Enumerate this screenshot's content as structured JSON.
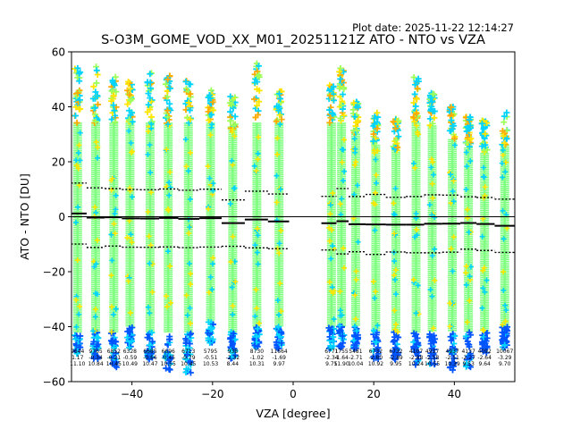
{
  "chart_data": {
    "type": "scatter",
    "title": "S-O3M_GOME_VOD_XX_M01_20251121Z ATO - NTO vs VZA",
    "plot_date": "Plot date: 2025-11-22 12:14:27",
    "xlabel": "VZA [degree]",
    "ylabel": "ATO - NTO [DU]",
    "xlim": [
      -55,
      55
    ],
    "ylim": [
      -60,
      60
    ],
    "xticks": [
      -40,
      -20,
      0,
      20,
      40
    ],
    "yticks": [
      -60,
      -40,
      -20,
      0,
      20,
      40,
      60
    ],
    "zero_line": 0,
    "bins": [
      {
        "vza": -53.5,
        "top": 55,
        "bot": -50,
        "mean": 1.17,
        "sd": 11.1,
        "n": "9644"
      },
      {
        "vza": -49.0,
        "top": 55,
        "bot": -52,
        "mean": -0.34,
        "sd": 10.84,
        "n": "9765"
      },
      {
        "vza": -44.5,
        "top": 51,
        "bot": -55,
        "mean": -0.21,
        "sd": 10.45,
        "n": "6852"
      },
      {
        "vza": -40.5,
        "top": 50,
        "bot": -48,
        "mean": -0.59,
        "sd": 10.49,
        "n": "6328"
      },
      {
        "vza": -35.5,
        "top": 53,
        "bot": -52,
        "mean": -0.66,
        "sd": 10.47,
        "n": "6685"
      },
      {
        "vza": -31.0,
        "top": 53,
        "bot": -56,
        "mean": -0.45,
        "sd": 10.55,
        "n": "6696"
      },
      {
        "vza": -26.0,
        "top": 50,
        "bot": -57,
        "mean": -0.79,
        "sd": 10.45,
        "n": "6713"
      },
      {
        "vza": -20.5,
        "top": 46,
        "bot": -46,
        "mean": -0.51,
        "sd": 10.53,
        "n": "5795"
      },
      {
        "vza": -15.0,
        "top": 44,
        "bot": -52,
        "mean": -2.32,
        "sd": 8.44,
        "n": "938"
      },
      {
        "vza": -9.0,
        "top": 58,
        "bot": -48,
        "mean": -1.02,
        "sd": 10.31,
        "n": "8730"
      },
      {
        "vza": -3.5,
        "top": 46,
        "bot": -48,
        "mean": -1.69,
        "sd": 9.97,
        "n": "11664"
      },
      {
        "vza": 9.5,
        "top": 48,
        "bot": -48,
        "mean": -2.34,
        "sd": 9.75,
        "n": "6771"
      },
      {
        "vza": 12.0,
        "top": 56,
        "bot": -48,
        "mean": -1.64,
        "sd": 11.9,
        "n": "1755"
      },
      {
        "vza": 15.5,
        "top": 42,
        "bot": -48,
        "mean": -2.71,
        "sd": 10.04,
        "n": "5481"
      },
      {
        "vza": 20.5,
        "top": 38,
        "bot": -52,
        "mean": -2.8,
        "sd": 10.92,
        "n": "6732"
      },
      {
        "vza": 25.5,
        "top": 36,
        "bot": -52,
        "mean": -2.89,
        "sd": 9.95,
        "n": "6732"
      },
      {
        "vza": 30.5,
        "top": 51,
        "bot": -55,
        "mean": -2.88,
        "sd": 10.24,
        "n": "4107"
      },
      {
        "vza": 34.5,
        "top": 45,
        "bot": -54,
        "mean": -2.58,
        "sd": 10.55,
        "n": "4937"
      },
      {
        "vza": 39.5,
        "top": 40,
        "bot": -56,
        "mean": -2.51,
        "sd": 10.39,
        "n": "4937"
      },
      {
        "vza": 43.5,
        "top": 37,
        "bot": -55,
        "mean": -2.27,
        "sd": 9.53,
        "n": "4137"
      },
      {
        "vza": 47.5,
        "top": 35,
        "bot": -50,
        "mean": -2.64,
        "sd": 9.64,
        "n": "4092"
      },
      {
        "vza": 52.5,
        "top": 38,
        "bot": -48,
        "mean": -3.29,
        "sd": 9.7,
        "n": "10067"
      }
    ],
    "colors": {
      "core": "#7fff7f",
      "cyan": "#00d4ff",
      "blue": "#0055ff",
      "darkblue": "#0000e0",
      "yellow": "#ffe600",
      "orange": "#ffaa00",
      "lightgreen": "#9cff5a"
    }
  }
}
